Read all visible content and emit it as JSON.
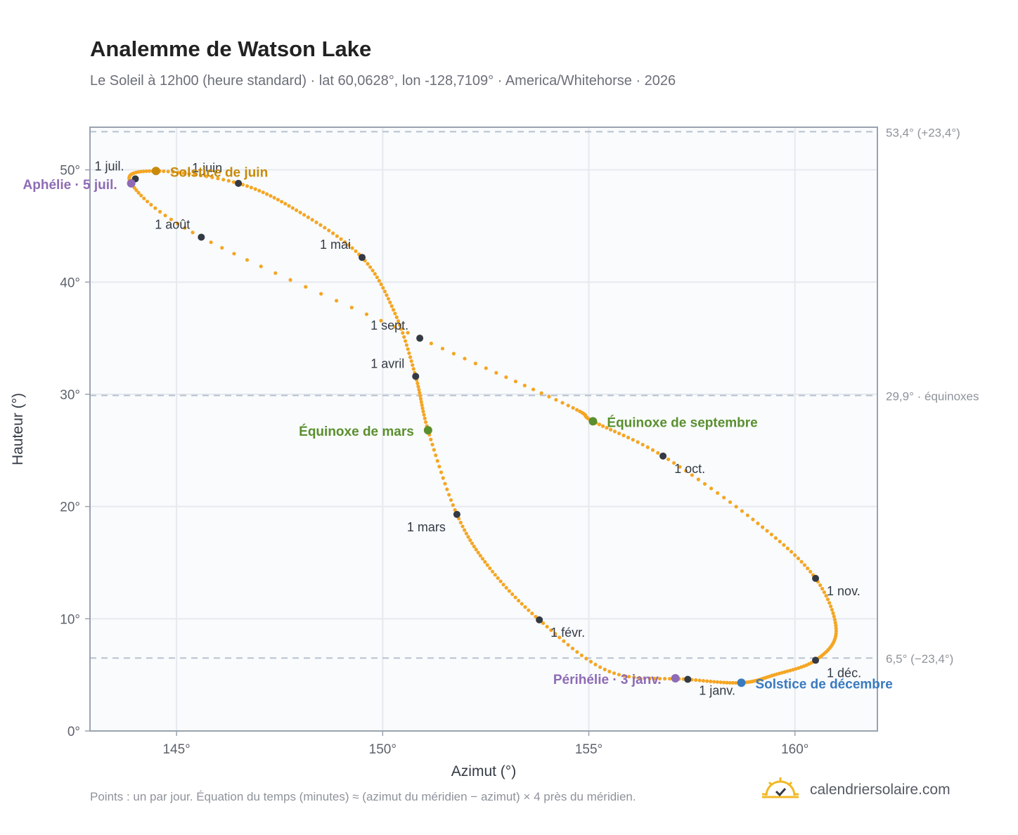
{
  "title": "Analemme de Watson Lake",
  "subtitle": "Le Soleil à 12h00 (heure standard) · lat 60,0628°, lon -128,7109° · America/Whitehorse · 2026",
  "footnote": "Points : un par jour. Équation du temps (minutes) ≈ (azimut du méridien − azimut) × 4 près du méridien.",
  "brand": {
    "name": "calendriersolaire.com",
    "icon": "sun-check-icon"
  },
  "colors": {
    "curve": "#f5a623",
    "month_marker": "#333a44",
    "solstice_june": "#c88a0b",
    "solstice_december": "#3a7abf",
    "equinox": "#5a8f2e",
    "apsis": "#8e6bb5",
    "grid": "#e6e9ee",
    "reference_line": "#b8c2cf",
    "plot_bg": "#f9fbfd"
  },
  "chart_data": {
    "type": "scatter",
    "xlabel": "Azimut (°)",
    "ylabel": "Hauteur (°)",
    "xlim": [
      142.9,
      162.0
    ],
    "ylim": [
      0,
      53.8
    ],
    "xticks": [
      {
        "v": 145,
        "label": "145°"
      },
      {
        "v": 150,
        "label": "150°"
      },
      {
        "v": 155,
        "label": "155°"
      },
      {
        "v": 160,
        "label": "160°"
      }
    ],
    "yticks": [
      {
        "v": 0,
        "label": "0°"
      },
      {
        "v": 10,
        "label": "10°"
      },
      {
        "v": 20,
        "label": "20°"
      },
      {
        "v": 30,
        "label": "30°"
      },
      {
        "v": 40,
        "label": "40°"
      },
      {
        "v": 50,
        "label": "50°"
      }
    ],
    "grid": true,
    "reference_lines": [
      {
        "y": 53.4,
        "label": "53,4° (+23,4°)"
      },
      {
        "y": 29.9,
        "label": "29,9° · équinoxes"
      },
      {
        "y": 6.5,
        "label": "6,5° (−23,4°)"
      }
    ],
    "series_note": "Points : un par jour",
    "daily_path": [
      [
        157.4,
        4.6
      ],
      [
        155.5,
        5.3
      ],
      [
        153.8,
        9.9
      ],
      [
        152.6,
        14.5
      ],
      [
        151.8,
        19.3
      ],
      [
        151.1,
        26.8
      ],
      [
        150.8,
        31.6
      ],
      [
        150.3,
        37.2
      ],
      [
        149.5,
        42.2
      ],
      [
        148.0,
        46.2
      ],
      [
        146.5,
        48.8
      ],
      [
        144.5,
        49.9
      ],
      [
        143.9,
        48.8
      ],
      [
        145.6,
        44.0
      ],
      [
        150.9,
        35.0
      ],
      [
        154.5,
        29.0
      ],
      [
        155.1,
        27.6
      ],
      [
        156.8,
        24.5
      ],
      [
        159.1,
        18.5
      ],
      [
        160.5,
        13.6
      ],
      [
        161.0,
        8.9
      ],
      [
        160.5,
        6.3
      ],
      [
        159.5,
        5.0
      ],
      [
        158.7,
        4.3
      ],
      [
        157.4,
        4.6
      ]
    ],
    "months": [
      {
        "label": "1 janv.",
        "x": 157.4,
        "y": 4.6
      },
      {
        "label": "1 févr.",
        "x": 153.8,
        "y": 9.9
      },
      {
        "label": "1 mars",
        "x": 151.8,
        "y": 19.3
      },
      {
        "label": "1 avril",
        "x": 150.8,
        "y": 31.6
      },
      {
        "label": "1 mai",
        "x": 149.5,
        "y": 42.2
      },
      {
        "label": "1 juin",
        "x": 146.5,
        "y": 48.8
      },
      {
        "label": "1 juil.",
        "x": 144.0,
        "y": 49.2
      },
      {
        "label": "1 août",
        "x": 145.6,
        "y": 44.0
      },
      {
        "label": "1 sept.",
        "x": 150.9,
        "y": 35.0
      },
      {
        "label": "1 oct.",
        "x": 156.8,
        "y": 24.5
      },
      {
        "label": "1 nov.",
        "x": 160.5,
        "y": 13.6
      },
      {
        "label": "1 déc.",
        "x": 160.5,
        "y": 6.3
      }
    ],
    "events": [
      {
        "label": "Solstice de juin",
        "x": 144.5,
        "y": 49.9,
        "color": "#c88a0b"
      },
      {
        "label": "Aphélie · 5 juil.",
        "x": 143.9,
        "y": 48.8,
        "color": "#8e6bb5"
      },
      {
        "label": "Équinoxe de mars",
        "x": 151.1,
        "y": 26.8,
        "color": "#5a8f2e"
      },
      {
        "label": "Équinoxe de septembre",
        "x": 155.1,
        "y": 27.6,
        "color": "#5a8f2e"
      },
      {
        "label": "Périhélie · 3 janv.",
        "x": 157.1,
        "y": 4.7,
        "color": "#8e6bb5"
      },
      {
        "label": "Solstice de décembre",
        "x": 158.7,
        "y": 4.3,
        "color": "#3a7abf"
      }
    ]
  }
}
